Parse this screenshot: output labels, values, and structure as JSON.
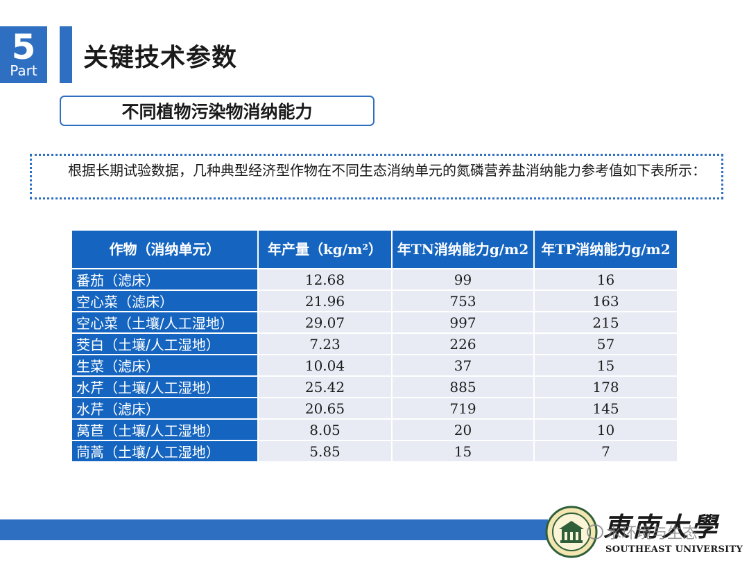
{
  "header": {
    "part_number": "5",
    "part_label": "Part",
    "title": "关键技术参数"
  },
  "section": {
    "title": "不同植物污染物消纳能力"
  },
  "intro": {
    "text": "根据长期试验数据，几种典型经济型作物在不同生态消纳单元的氮磷营养盐消纳能力参考值如下表所示："
  },
  "table": {
    "headers": {
      "crop": "作物（消纳单元）",
      "yield": "年产量（kg/m²）",
      "tn": "年TN消纳能力g/m2",
      "tp": "年TP消纳能力g/m2"
    },
    "rows": [
      {
        "crop": "番茄（滤床）",
        "yield": "12.68",
        "tn": "99",
        "tp": "16"
      },
      {
        "crop": "空心菜（滤床）",
        "yield": "21.96",
        "tn": "753",
        "tp": "163"
      },
      {
        "crop": "空心菜（土壤/人工湿地）",
        "yield": "29.07",
        "tn": "997",
        "tp": "215"
      },
      {
        "crop": "茭白（土壤/人工湿地）",
        "yield": "7.23",
        "tn": "226",
        "tp": "57"
      },
      {
        "crop": "生菜（滤床）",
        "yield": "10.04",
        "tn": "37",
        "tp": "15"
      },
      {
        "crop": "水芹（土壤/人工湿地）",
        "yield": "25.42",
        "tn": "885",
        "tp": "178"
      },
      {
        "crop": "水芹（滤床）",
        "yield": "20.65",
        "tn": "719",
        "tp": "145"
      },
      {
        "crop": "莴苣（土壤/人工湿地）",
        "yield": "8.05",
        "tn": "20",
        "tp": "10"
      },
      {
        "crop": "茼蒿（土壤/人工湿地）",
        "yield": "5.85",
        "tn": "15",
        "tp": "7"
      }
    ]
  },
  "footer": {
    "university_cn": "東南大學",
    "university_en": "SOUTHEAST UNIVERSITY",
    "watermark": "水环境与生态"
  },
  "colors": {
    "accent": "#2f6fc2",
    "table_header": "#1565c0",
    "table_cell": "#e8ebf4"
  }
}
